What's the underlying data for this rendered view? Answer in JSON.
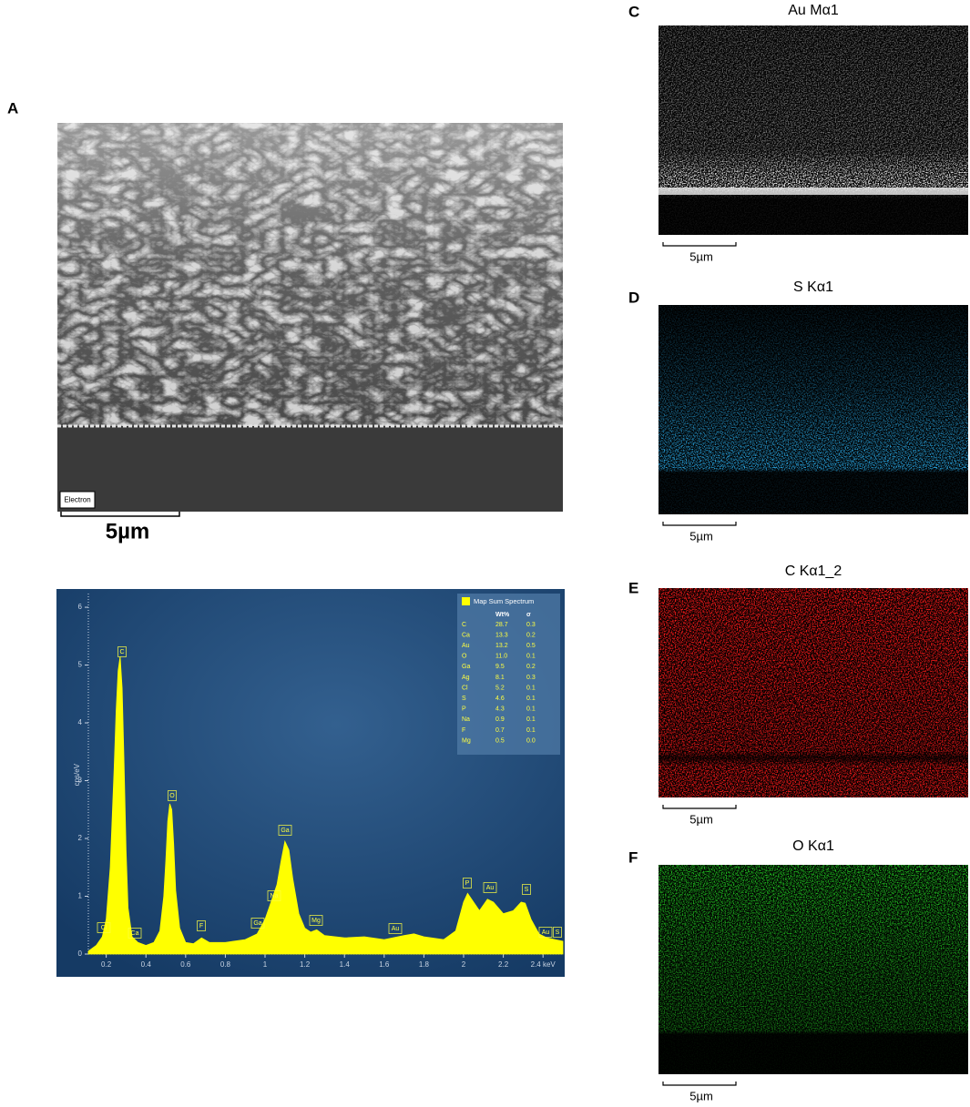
{
  "sem": {
    "letter": "A",
    "detector": "Electron",
    "scale_bar": "5µm"
  },
  "chart_data": {
    "type": "area",
    "y_label": "cps/eV",
    "color": "#ffff00",
    "x": [
      0.11,
      0.15,
      0.18,
      0.2,
      0.22,
      0.24,
      0.25,
      0.26,
      0.27,
      0.28,
      0.29,
      0.3,
      0.31,
      0.33,
      0.36,
      0.4,
      0.44,
      0.47,
      0.49,
      0.5,
      0.51,
      0.52,
      0.53,
      0.54,
      0.55,
      0.57,
      0.6,
      0.64,
      0.68,
      0.72,
      0.8,
      0.9,
      0.96,
      1.0,
      1.03,
      1.06,
      1.08,
      1.1,
      1.12,
      1.14,
      1.17,
      1.2,
      1.23,
      1.26,
      1.3,
      1.4,
      1.5,
      1.6,
      1.7,
      1.75,
      1.8,
      1.9,
      1.96,
      2.0,
      2.02,
      2.05,
      2.08,
      2.12,
      2.15,
      2.2,
      2.25,
      2.29,
      2.31,
      2.34,
      2.38,
      2.42,
      2.46,
      2.5
    ],
    "values": [
      0.05,
      0.15,
      0.3,
      0.6,
      1.5,
      3.2,
      4.2,
      4.9,
      5.15,
      4.6,
      3.3,
      1.8,
      0.8,
      0.3,
      0.2,
      0.15,
      0.2,
      0.4,
      1.0,
      1.6,
      2.3,
      2.6,
      2.5,
      1.9,
      1.1,
      0.45,
      0.2,
      0.18,
      0.28,
      0.2,
      0.2,
      0.25,
      0.35,
      0.6,
      0.9,
      1.2,
      1.6,
      1.95,
      1.8,
      1.3,
      0.7,
      0.45,
      0.38,
      0.42,
      0.32,
      0.28,
      0.3,
      0.25,
      0.32,
      0.35,
      0.3,
      0.25,
      0.4,
      0.9,
      1.05,
      0.9,
      0.75,
      0.95,
      0.9,
      0.7,
      0.75,
      0.9,
      0.88,
      0.6,
      0.35,
      0.28,
      0.25,
      0.22
    ],
    "xlim": [
      0.11,
      2.5
    ],
    "ylim": [
      0,
      6.3
    ],
    "xticks": [
      0.2,
      0.4,
      0.6,
      0.8,
      1,
      1.2,
      1.4,
      1.6,
      1.8,
      2,
      2.2,
      {
        "value": 2.4,
        "label": "2.4 keV"
      }
    ],
    "yticks": [
      0,
      1,
      2,
      3,
      4,
      5,
      6
    ],
    "annotations": [
      "Cl",
      "C",
      "Ca",
      "O",
      "F",
      "Ga",
      "Na",
      "Ga",
      "Mg",
      "Au",
      "P",
      "Au",
      "S",
      "Au",
      "S"
    ],
    "legend_title": "Map Sum Spectrum",
    "table_header": [
      "Wt%",
      "σ"
    ],
    "table_rows": [
      [
        "C",
        "28.7",
        "0.3"
      ],
      [
        "Ca",
        "13.3",
        "0.2"
      ],
      [
        "Au",
        "13.2",
        "0.5"
      ],
      [
        "O",
        "11.0",
        "0.1"
      ],
      [
        "Ga",
        "9.5",
        "0.2"
      ],
      [
        "Ag",
        "8.1",
        "0.3"
      ],
      [
        "Cl",
        "5.2",
        "0.1"
      ],
      [
        "S",
        "4.6",
        "0.1"
      ],
      [
        "P",
        "4.3",
        "0.1"
      ],
      [
        "Na",
        "0.9",
        "0.1"
      ],
      [
        "F",
        "0.7",
        "0.1"
      ],
      [
        "Mg",
        "0.5",
        "0.0"
      ]
    ]
  },
  "maps": [
    {
      "letter": "C",
      "title": "Au Mα1",
      "scale_bar": "5µm"
    },
    {
      "letter": "D",
      "title": "S Kα1",
      "scale_bar": "5µm"
    },
    {
      "letter": "E",
      "title": "C Kα1_2",
      "scale_bar": "5µm"
    },
    {
      "letter": "F",
      "title": "O Kα1",
      "scale_bar": "5µm"
    }
  ]
}
